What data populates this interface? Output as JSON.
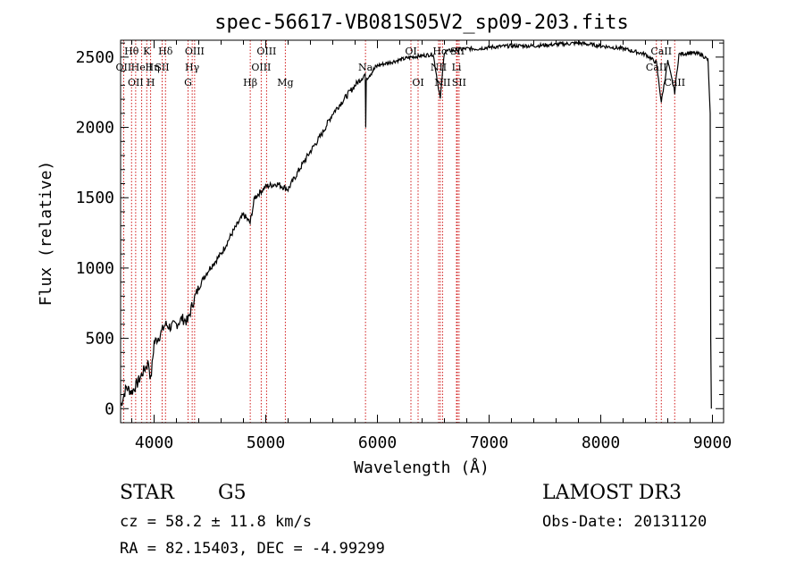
{
  "chart_data": {
    "type": "line",
    "title": "spec-56617-VB081S05V2_sp09-203.fits",
    "xlabel": "Wavelength (Å)",
    "ylabel": "Flux (relative)",
    "xlim": [
      3700,
      9100
    ],
    "ylim": [
      -100,
      2620
    ],
    "xticks": [
      4000,
      5000,
      6000,
      7000,
      8000,
      9000
    ],
    "yticks": [
      0,
      500,
      1000,
      1500,
      2000,
      2500
    ],
    "grid": false,
    "series": [
      {
        "name": "spectrum",
        "color": "#000000",
        "points": [
          [
            3700,
            20
          ],
          [
            3750,
            150
          ],
          [
            3800,
            120
          ],
          [
            3850,
            180
          ],
          [
            3900,
            260
          ],
          [
            3950,
            330
          ],
          [
            3970,
            200
          ],
          [
            4000,
            470
          ],
          [
            4050,
            520
          ],
          [
            4100,
            600
          ],
          [
            4150,
            580
          ],
          [
            4200,
            600
          ],
          [
            4250,
            640
          ],
          [
            4300,
            620
          ],
          [
            4350,
            760
          ],
          [
            4400,
            860
          ],
          [
            4450,
            940
          ],
          [
            4500,
            1000
          ],
          [
            4600,
            1100
          ],
          [
            4700,
            1250
          ],
          [
            4800,
            1380
          ],
          [
            4860,
            1320
          ],
          [
            4900,
            1500
          ],
          [
            5000,
            1580
          ],
          [
            5100,
            1600
          ],
          [
            5200,
            1560
          ],
          [
            5300,
            1700
          ],
          [
            5400,
            1830
          ],
          [
            5500,
            1950
          ],
          [
            5600,
            2100
          ],
          [
            5700,
            2200
          ],
          [
            5800,
            2300
          ],
          [
            5890,
            2380
          ],
          [
            5895,
            1980
          ],
          [
            5900,
            2350
          ],
          [
            6000,
            2440
          ],
          [
            6100,
            2460
          ],
          [
            6200,
            2480
          ],
          [
            6300,
            2500
          ],
          [
            6400,
            2510
          ],
          [
            6500,
            2520
          ],
          [
            6563,
            2200
          ],
          [
            6600,
            2540
          ],
          [
            6700,
            2550
          ],
          [
            6800,
            2560
          ],
          [
            6900,
            2560
          ],
          [
            7000,
            2570
          ],
          [
            7200,
            2580
          ],
          [
            7400,
            2580
          ],
          [
            7600,
            2590
          ],
          [
            7800,
            2600
          ],
          [
            8000,
            2580
          ],
          [
            8200,
            2560
          ],
          [
            8400,
            2520
          ],
          [
            8498,
            2460
          ],
          [
            8542,
            2180
          ],
          [
            8600,
            2470
          ],
          [
            8662,
            2250
          ],
          [
            8700,
            2520
          ],
          [
            8800,
            2530
          ],
          [
            8900,
            2520
          ],
          [
            8960,
            2480
          ],
          [
            8980,
            2100
          ],
          [
            8985,
            500
          ],
          [
            8990,
            0
          ]
        ]
      }
    ],
    "lines": [
      {
        "wave": 3727,
        "labels": [
          "OII"
        ],
        "row": 2
      },
      {
        "wave": 3798,
        "labels": [
          "Hθ"
        ],
        "row": 1
      },
      {
        "wave": 3835,
        "labels": [
          "OII"
        ],
        "row": 3
      },
      {
        "wave": 3889,
        "labels": [
          "He I",
          "Hη"
        ],
        "row": 2
      },
      {
        "wave": 3934,
        "labels": [
          "K"
        ],
        "row": 1
      },
      {
        "wave": 3969,
        "labels": [
          "H"
        ],
        "row": 3
      },
      {
        "wave": 4072,
        "labels": [
          "SII"
        ],
        "row": 2
      },
      {
        "wave": 4102,
        "labels": [
          "Hδ"
        ],
        "row": 1
      },
      {
        "wave": 4304,
        "labels": [
          "G"
        ],
        "row": 3
      },
      {
        "wave": 4341,
        "labels": [
          "Hγ"
        ],
        "row": 2
      },
      {
        "wave": 4363,
        "labels": [
          "OIII"
        ],
        "row": 1
      },
      {
        "wave": 4861,
        "labels": [
          "Hβ"
        ],
        "row": 3
      },
      {
        "wave": 4959,
        "labels": [
          "OIII"
        ],
        "row": 2
      },
      {
        "wave": 5007,
        "labels": [
          "OIII"
        ],
        "row": 1
      },
      {
        "wave": 5175,
        "labels": [
          "Mg"
        ],
        "row": 3
      },
      {
        "wave": 5893,
        "labels": [
          "Na"
        ],
        "row": 2
      },
      {
        "wave": 6300,
        "labels": [
          "OI"
        ],
        "row": 1
      },
      {
        "wave": 6364,
        "labels": [
          "OI"
        ],
        "row": 3
      },
      {
        "wave": 6548,
        "labels": [
          "NII"
        ],
        "row": 2
      },
      {
        "wave": 6563,
        "labels": [
          "Hα"
        ],
        "row": 1
      },
      {
        "wave": 6583,
        "labels": [
          "NII"
        ],
        "row": 3
      },
      {
        "wave": 6708,
        "labels": [
          "Li"
        ],
        "row": 2
      },
      {
        "wave": 6716,
        "labels": [
          "SII"
        ],
        "row": 1
      },
      {
        "wave": 6731,
        "labels": [
          "SII"
        ],
        "row": 3
      },
      {
        "wave": 8498,
        "labels": [
          "CaII"
        ],
        "row": 2
      },
      {
        "wave": 8542,
        "labels": [
          "CaII"
        ],
        "row": 1
      },
      {
        "wave": 8662,
        "labels": [
          "CaII"
        ],
        "row": 3
      }
    ]
  },
  "info": {
    "class": "STAR",
    "subclass": "G5",
    "survey": "LAMOST DR3",
    "cz": "cz = 58.2 ± 11.8 km/s",
    "obs_date": "Obs-Date: 20131120",
    "radec": "RA =  82.15403, DEC =  -4.99299"
  },
  "colors": {
    "spectrum": "#000000",
    "line_markers": "#cc0000",
    "axes": "#000000",
    "background": "#ffffff"
  }
}
